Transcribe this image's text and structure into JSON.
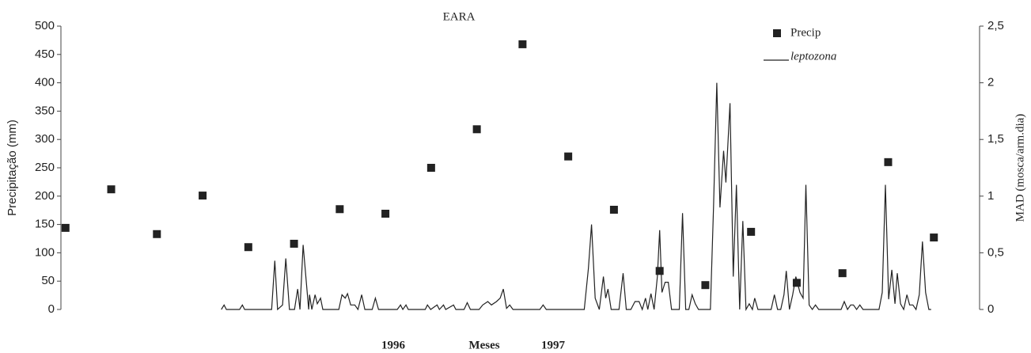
{
  "chart_data": {
    "type": "scatter",
    "title": "EARA",
    "y_label": "Precipitação (mm)",
    "y2_label": "MAD (mosca/arm.dia)",
    "annotations": [
      "1996",
      "Meses",
      "1997"
    ],
    "xlim": [
      -0.1,
      20
    ],
    "ylim": [
      0,
      500
    ],
    "yticks": [
      0,
      50,
      100,
      150,
      200,
      250,
      300,
      350,
      400,
      450,
      500
    ],
    "y2lim": [
      0,
      2.5
    ],
    "y2ticks": [
      0,
      {
        "value": 0.5,
        "label": "0,5"
      },
      1,
      {
        "value": 1.5,
        "label": "1,5"
      },
      2,
      {
        "value": 2.5,
        "label": "2,5"
      }
    ],
    "series": [
      {
        "name": "Precip",
        "type": "scatter",
        "color": "#222222",
        "x": [
          0,
          1,
          2,
          3,
          4,
          5,
          6,
          7,
          8,
          9,
          10,
          11,
          12,
          13,
          14,
          15,
          16,
          17,
          18,
          19
        ],
        "values": [
          144,
          212,
          133,
          201,
          110,
          116,
          177,
          169,
          250,
          318,
          468,
          270,
          176,
          68,
          43,
          137,
          47,
          64,
          260,
          127
        ]
      },
      {
        "name": "leptozona",
        "type": "line",
        "axis": "y2",
        "color": "#222222",
        "x": [
          3.41,
          3.47,
          3.52,
          3.81,
          3.87,
          3.92,
          4.51,
          4.58,
          4.64,
          4.75,
          4.82,
          4.9,
          5.01,
          5.08,
          5.13,
          5.2,
          5.32,
          5.34,
          5.39,
          5.46,
          5.51,
          5.58,
          5.63,
          5.98,
          6.05,
          6.12,
          6.17,
          6.24,
          6.33,
          6.4,
          6.48,
          6.55,
          6.71,
          6.78,
          6.85,
          7.26,
          7.33,
          7.38,
          7.45,
          7.5,
          7.87,
          7.92,
          7.99,
          8.13,
          8.18,
          8.27,
          8.32,
          8.49,
          8.54,
          8.72,
          8.79,
          8.86,
          9.05,
          9.13,
          9.24,
          9.32,
          9.43,
          9.51,
          9.58,
          9.65,
          9.72,
          9.79,
          10.38,
          10.45,
          10.52,
          11.35,
          11.44,
          11.51,
          11.59,
          11.68,
          11.77,
          11.82,
          11.87,
          11.94,
          12.11,
          12.2,
          12.27,
          12.37,
          12.46,
          12.55,
          12.62,
          12.69,
          12.74,
          12.81,
          12.88,
          12.95,
          13.0,
          13.05,
          13.12,
          13.19,
          13.26,
          13.43,
          13.5,
          13.57,
          13.64,
          13.71,
          13.78,
          13.85,
          14.11,
          14.18,
          14.25,
          14.32,
          14.4,
          14.45,
          14.54,
          14.61,
          14.68,
          14.75,
          14.82,
          14.89,
          14.96,
          15.03,
          15.08,
          15.15,
          15.44,
          15.51,
          15.58,
          15.65,
          15.72,
          15.77,
          15.84,
          15.91,
          15.98,
          16.07,
          16.14,
          16.2,
          16.27,
          16.34,
          16.41,
          16.48,
          16.97,
          17.04,
          17.11,
          17.18,
          17.24,
          17.31,
          17.38,
          17.45,
          17.8,
          17.87,
          17.94,
          18.01,
          18.08,
          18.15,
          18.2,
          18.27,
          18.34,
          18.41,
          18.47,
          18.54,
          18.61,
          18.68,
          18.75,
          18.82,
          18.89,
          18.94
        ],
        "values": [
          0,
          0.04,
          0,
          0,
          0.04,
          0,
          0,
          0.43,
          0,
          0.04,
          0.45,
          0,
          0,
          0.18,
          0,
          0.57,
          0,
          0.13,
          0,
          0.13,
          0.05,
          0.1,
          0,
          0,
          0.13,
          0.1,
          0.14,
          0.04,
          0.04,
          0,
          0.13,
          0,
          0,
          0.1,
          0,
          0,
          0.04,
          0,
          0.04,
          0,
          0,
          0.04,
          0,
          0.04,
          0,
          0.04,
          0,
          0.04,
          0,
          0,
          0.06,
          0,
          0,
          0.04,
          0.07,
          0.04,
          0.07,
          0.1,
          0.18,
          0.01,
          0.04,
          0,
          0,
          0.04,
          0,
          0,
          0.36,
          0.75,
          0.1,
          0,
          0.29,
          0.1,
          0.18,
          0,
          0,
          0.32,
          0,
          0,
          0.07,
          0.07,
          0,
          0.1,
          0,
          0.14,
          0,
          0.29,
          0.7,
          0.15,
          0.24,
          0.24,
          0,
          0,
          0.85,
          0,
          0,
          0.13,
          0.05,
          0,
          0,
          0.91,
          2.0,
          0.9,
          1.4,
          1.12,
          1.82,
          0.29,
          1.1,
          0,
          0.78,
          0,
          0.05,
          0,
          0.1,
          0,
          0,
          0.13,
          0,
          0,
          0.13,
          0.34,
          0,
          0.13,
          0.29,
          0.15,
          0.1,
          1.1,
          0.04,
          0,
          0.04,
          0,
          0,
          0.07,
          0,
          0.04,
          0.04,
          0,
          0.04,
          0,
          0,
          0.15,
          1.1,
          0.09,
          0.35,
          0.05,
          0.32,
          0.05,
          0,
          0.13,
          0.04,
          0.04,
          0,
          0.13,
          0.6,
          0.15,
          0,
          0
        ]
      }
    ]
  }
}
